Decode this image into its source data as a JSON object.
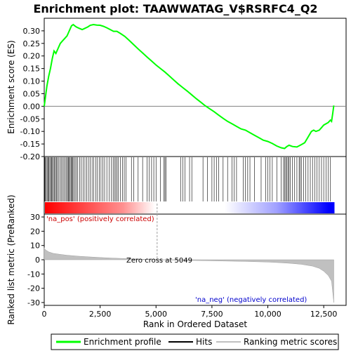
{
  "chart_data": [
    {
      "type": "line",
      "title": "Enrichment plot: TAAWWATAG_V$RSRFC4_Q2",
      "ylabel": "Enrichment score (ES)",
      "xlim": [
        0,
        13500
      ],
      "ylim": [
        -0.2,
        0.35
      ],
      "yticks": [
        "0.30",
        "0.25",
        "0.20",
        "0.15",
        "0.10",
        "0.05",
        "0.00",
        "-0.05",
        "-0.10",
        "-0.15",
        "-0.20"
      ],
      "ytick_values": [
        0.3,
        0.25,
        0.2,
        0.15,
        0.1,
        0.05,
        0.0,
        -0.05,
        -0.1,
        -0.15,
        -0.2
      ],
      "series": [
        {
          "name": "Enrichment profile",
          "color": "#00ff00",
          "x": [
            0,
            60,
            120,
            200,
            280,
            360,
            440,
            520,
            620,
            720,
            820,
            920,
            1020,
            1120,
            1220,
            1300,
            1360,
            1440,
            1560,
            1700,
            1820,
            1940,
            2060,
            2200,
            2350,
            2500,
            2650,
            2800,
            2950,
            3100,
            3250,
            3400,
            3600,
            3800,
            4000,
            4200,
            4400,
            4600,
            4800,
            5000,
            5200,
            5400,
            5600,
            5800,
            6000,
            6200,
            6400,
            6600,
            6800,
            7000,
            7200,
            7400,
            7600,
            7800,
            8000,
            8200,
            8400,
            8600,
            8800,
            9000,
            9200,
            9400,
            9600,
            9800,
            10000,
            10200,
            10400,
            10600,
            10750,
            10850,
            10950,
            11100,
            11300,
            11450,
            11550,
            11650,
            11750,
            11850,
            11950,
            12050,
            12150,
            12300,
            12400,
            12500,
            12600,
            12700,
            12800,
            12850,
            12900,
            12950
          ],
          "y": [
            0.0,
            0.04,
            0.08,
            0.12,
            0.15,
            0.19,
            0.22,
            0.21,
            0.23,
            0.25,
            0.26,
            0.27,
            0.28,
            0.3,
            0.32,
            0.325,
            0.32,
            0.315,
            0.31,
            0.305,
            0.31,
            0.315,
            0.322,
            0.325,
            0.323,
            0.322,
            0.318,
            0.312,
            0.305,
            0.298,
            0.298,
            0.29,
            0.278,
            0.262,
            0.245,
            0.228,
            0.212,
            0.196,
            0.18,
            0.164,
            0.15,
            0.136,
            0.12,
            0.104,
            0.088,
            0.074,
            0.06,
            0.045,
            0.03,
            0.016,
            0.002,
            -0.01,
            -0.022,
            -0.035,
            -0.048,
            -0.06,
            -0.07,
            -0.08,
            -0.09,
            -0.095,
            -0.105,
            -0.115,
            -0.125,
            -0.135,
            -0.14,
            -0.148,
            -0.158,
            -0.165,
            -0.168,
            -0.16,
            -0.155,
            -0.16,
            -0.162,
            -0.155,
            -0.15,
            -0.145,
            -0.13,
            -0.115,
            -0.1,
            -0.095,
            -0.1,
            -0.095,
            -0.085,
            -0.075,
            -0.07,
            -0.065,
            -0.055,
            -0.06,
            -0.03,
            0.003
          ]
        }
      ]
    },
    {
      "type": "heatmap",
      "description_colors": [
        "#ff0000",
        "#ffffff",
        "#0000ff"
      ],
      "hits_x": [
        20,
        50,
        90,
        130,
        170,
        210,
        250,
        290,
        330,
        370,
        410,
        450,
        500,
        540,
        580,
        640,
        700,
        760,
        820,
        880,
        940,
        1000,
        1040,
        1080,
        1120,
        1160,
        1200,
        1240,
        1280,
        1320,
        1380,
        1440,
        1500,
        1580,
        1660,
        1740,
        1820,
        1900,
        1980,
        2060,
        2140,
        2220,
        2300,
        2380,
        2460,
        2540,
        2620,
        2700,
        2800,
        2900,
        3000,
        3080,
        3140,
        3200,
        3260,
        3320,
        3400,
        3500,
        3580,
        3660,
        3900,
        4000,
        4200,
        4400,
        4600,
        4700,
        4800,
        4900,
        5000,
        5200,
        5350,
        5400,
        5450,
        6100,
        6200,
        6300,
        6500,
        6600,
        7100,
        7300,
        7500,
        7600,
        7700,
        7800,
        8000,
        8200,
        8400,
        8500,
        8600,
        8900,
        9000,
        9100,
        9200,
        9400,
        9700,
        9900,
        10000,
        10100,
        10200,
        10400,
        10600,
        10700,
        10750,
        10800,
        10850,
        10900,
        10950,
        11000,
        11100,
        11200,
        11300,
        11400,
        11450,
        11500,
        11600,
        11700,
        11800,
        11900,
        12000,
        12100,
        12200,
        12300,
        12400,
        12500,
        12600,
        12700,
        12800
      ]
    },
    {
      "type": "area",
      "ylabel": "Ranked list metric (PreRanked)",
      "xlabel": "Rank in Ordered Dataset",
      "xlim": [
        0,
        13500
      ],
      "ylim": [
        -32,
        32
      ],
      "xticks": [
        "0",
        "2,500",
        "5,000",
        "7,500",
        "10,000",
        "12,500"
      ],
      "xtick_values": [
        0,
        2500,
        5000,
        7500,
        10000,
        12500
      ],
      "yticks": [
        "30",
        "20",
        "10",
        "0",
        "-10",
        "-20",
        "-30"
      ],
      "ytick_values": [
        30,
        20,
        10,
        0,
        -10,
        -20,
        -30
      ],
      "annotations": {
        "pos": "'na_pos' (positively correlated)",
        "neg": "'na_neg' (negatively correlated)",
        "zero": "Zero cross at 5049"
      },
      "zero_cross": 5049,
      "x": [
        0,
        20,
        100,
        200,
        400,
        700,
        1000,
        1500,
        2000,
        2500,
        3000,
        4000,
        5049,
        6000,
        7000,
        8000,
        9000,
        10000,
        10500,
        11000,
        11500,
        12000,
        12300,
        12500,
        12700,
        12850,
        12950
      ],
      "y": [
        8.5,
        7.5,
        6.5,
        5.5,
        4.5,
        3.8,
        3.2,
        2.5,
        2.0,
        1.6,
        1.2,
        0.6,
        0.0,
        -0.3,
        -0.6,
        -0.9,
        -1.2,
        -1.6,
        -2.0,
        -2.5,
        -3.2,
        -4.5,
        -6.0,
        -8.0,
        -11.0,
        -15.0,
        -30.0
      ]
    }
  ],
  "legend": {
    "items": [
      {
        "label": "Enrichment profile",
        "color": "#00ff00"
      },
      {
        "label": "Hits",
        "color": "#000000"
      },
      {
        "label": "Ranking metric scores",
        "color": "#c0c0c0"
      }
    ]
  }
}
